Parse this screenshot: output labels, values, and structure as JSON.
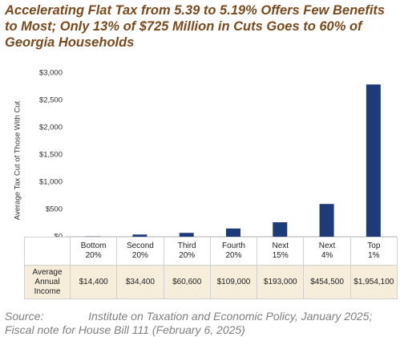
{
  "chart_data": {
    "type": "bar",
    "title": "Accelerating Flat Tax from 5.39 to 5.19% Offers Few Benefits to Most; Only 13% of $725 Million in Cuts Goes to 60% of Georgia Households",
    "y_label": "Average Tax Cut of Those With Cut",
    "categories": [
      "Bottom\n20%",
      "Second\n20%",
      "Third\n20%",
      "Fourth\n20%",
      "Next\n15%",
      "Next\n4%",
      "Top\n1%"
    ],
    "values": [
      5,
      40,
      70,
      150,
      265,
      600,
      2790
    ],
    "color": "#1f3a78",
    "ylim": [
      0,
      3000
    ],
    "yticks": [
      {
        "value": 0,
        "label": "$0"
      },
      {
        "value": 500,
        "label": "$500"
      },
      {
        "value": 1000,
        "label": "$1,000"
      },
      {
        "value": 1500,
        "label": "$1,500"
      },
      {
        "value": 2000,
        "label": "$2,000"
      },
      {
        "value": 2500,
        "label": "$2,500"
      },
      {
        "value": 3000,
        "label": "$3,000"
      }
    ],
    "grid": false,
    "income_row": {
      "label": "Average\nAnnual\nIncome",
      "values": [
        "$14,400",
        "$34,400",
        "$60,600",
        "$109,000",
        "$193,000",
        "$454,500",
        "$1,954,100"
      ]
    },
    "source_label": "Source:",
    "source": "Institute on Taxation and Economic Policy, January 2025; Fiscal note for House Bill 111 (February 6, 2025)"
  }
}
